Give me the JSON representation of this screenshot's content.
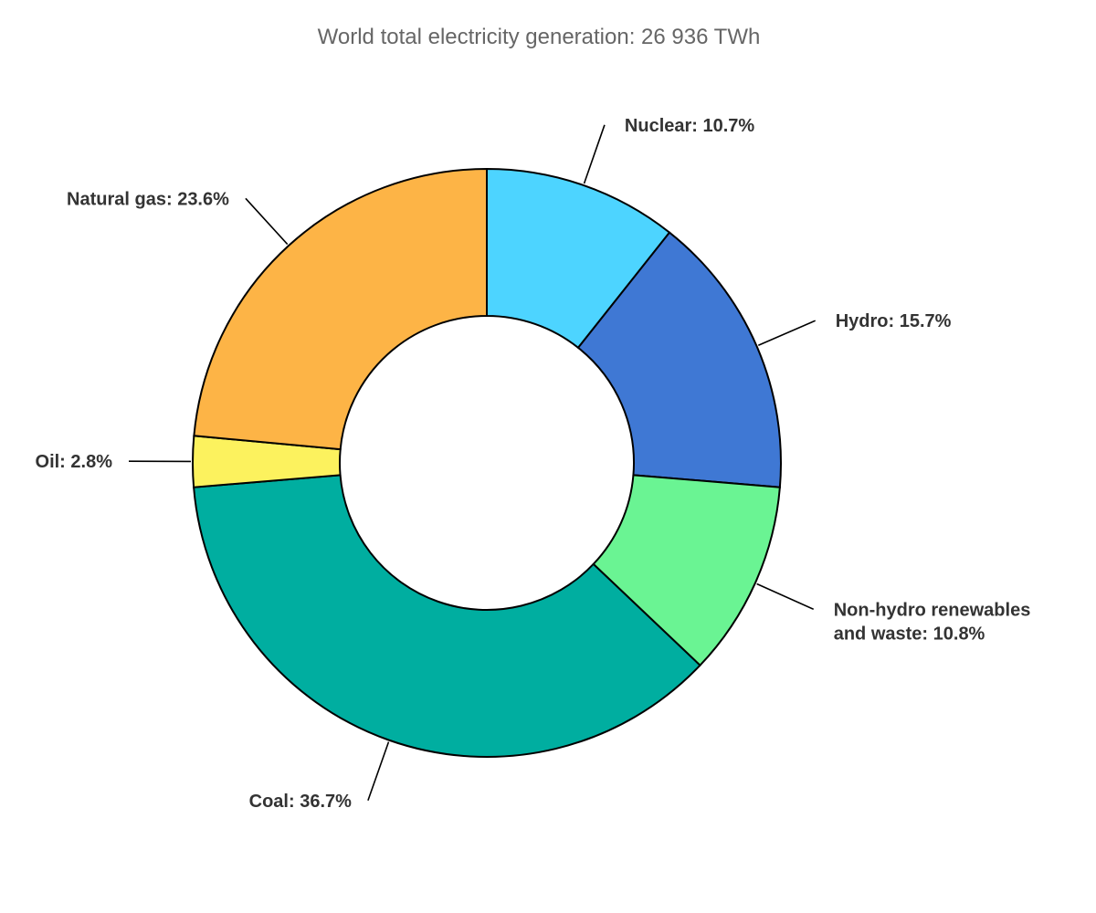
{
  "chart_data": {
    "type": "pie",
    "variant": "donut",
    "title": "World total electricity generation: 26 936 TWh",
    "slices": [
      {
        "name": "Nuclear",
        "value": 10.7,
        "color": "#4DD4FF",
        "label_lines": [
          "Nuclear: 10.7%"
        ]
      },
      {
        "name": "Hydro",
        "value": 15.7,
        "color": "#3F78D4",
        "label_lines": [
          "Hydro: 15.7%"
        ]
      },
      {
        "name": "Non-hydro renewables and waste",
        "value": 10.8,
        "color": "#6AF493",
        "label_lines": [
          "Non-hydro renewables",
          "and waste: 10.8%"
        ]
      },
      {
        "name": "Coal",
        "value": 36.7,
        "color": "#00AEA0",
        "label_lines": [
          "Coal: 36.7%"
        ]
      },
      {
        "name": "Oil",
        "value": 2.8,
        "color": "#FCF25E",
        "label_lines": [
          "Oil: 2.8%"
        ]
      },
      {
        "name": "Natural gas",
        "value": 23.6,
        "color": "#FDB446",
        "label_lines": [
          "Natural gas: 23.6%"
        ]
      }
    ],
    "start_angle_deg": 0,
    "direction": "clockwise",
    "legend": "none"
  }
}
